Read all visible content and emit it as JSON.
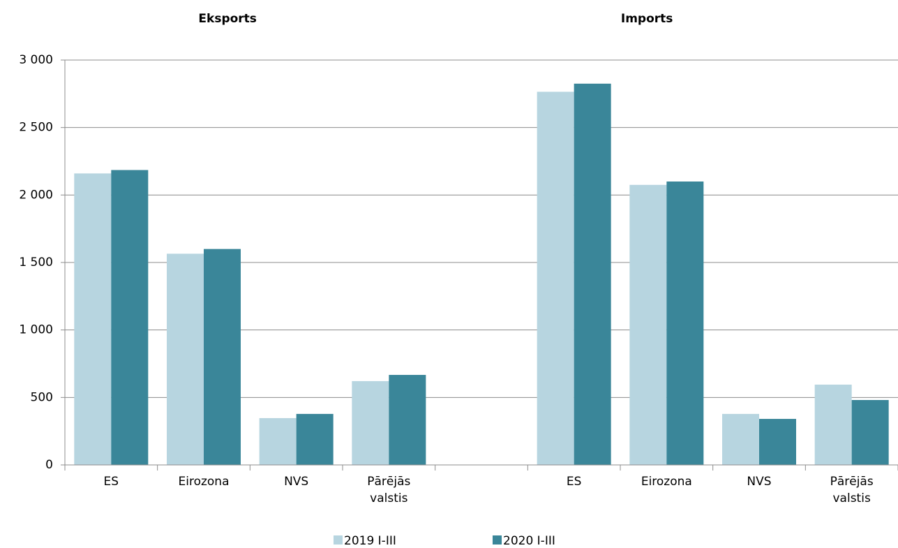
{
  "chart_data": {
    "type": "bar",
    "annotations": [
      "Eksports",
      "Imports"
    ],
    "categories": [
      "ES",
      "Eirozona",
      "NVS",
      "Pārējās\nvalstis",
      null,
      "ES",
      "Eirozona",
      "NVS",
      "Pārējās\nvalstis"
    ],
    "series": [
      {
        "name": "2019 I-III",
        "color": "#b7d5e0",
        "values": [
          2160,
          1565,
          347,
          621,
          null,
          2765,
          2075,
          378,
          595
        ]
      },
      {
        "name": "2020 I-III",
        "color": "#3a8699",
        "values": [
          2185,
          1600,
          378,
          667,
          null,
          2825,
          2100,
          341,
          481
        ]
      }
    ],
    "ylim": [
      0,
      3000
    ],
    "yticks": [
      0,
      500,
      {
        "value": 1000,
        "label": "1 000"
      },
      {
        "value": 1500,
        "label": "1 500"
      },
      {
        "value": 2000,
        "label": "2 000"
      },
      {
        "value": 2500,
        "label": "2 500"
      },
      {
        "value": 3000,
        "label": "3 000"
      }
    ],
    "grid": true
  }
}
